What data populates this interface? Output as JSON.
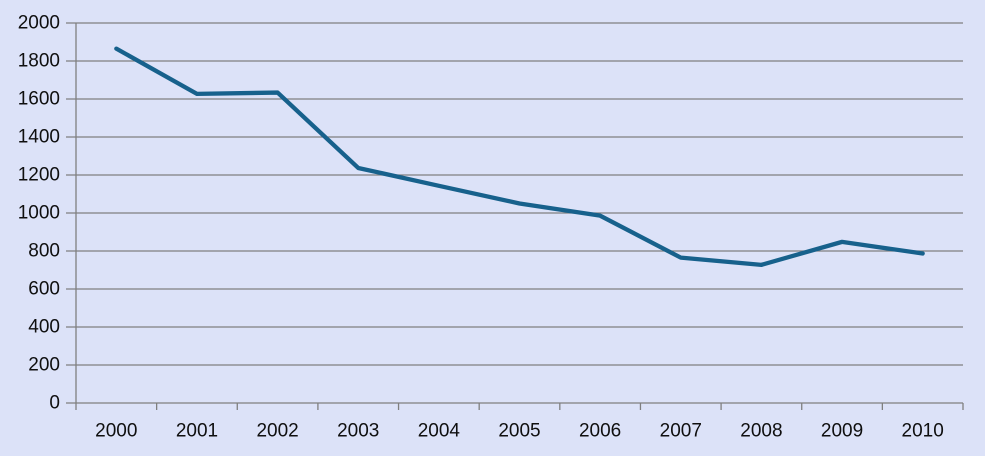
{
  "chart_data": {
    "type": "line",
    "categories": [
      "2000",
      "2001",
      "2002",
      "2003",
      "2004",
      "2005",
      "2006",
      "2007",
      "2008",
      "2009",
      "2010"
    ],
    "values": [
      1865,
      1627,
      1634,
      1237,
      1143,
      1050,
      986,
      765,
      727,
      848,
      787
    ],
    "title": "",
    "xlabel": "",
    "ylabel": "",
    "ylim": [
      0,
      2000
    ],
    "y_tick_step": 200,
    "y_tick_labels": [
      "0",
      "200",
      "400",
      "600",
      "800",
      "1000",
      "1200",
      "1400",
      "1600",
      "1800",
      "2000"
    ],
    "grid": true,
    "legend": false
  },
  "colors": {
    "background": "#dce2f8",
    "gridline": "#808080",
    "axis": "#7f7f7f",
    "line": "#17618c",
    "text": "#0f0f0f"
  }
}
